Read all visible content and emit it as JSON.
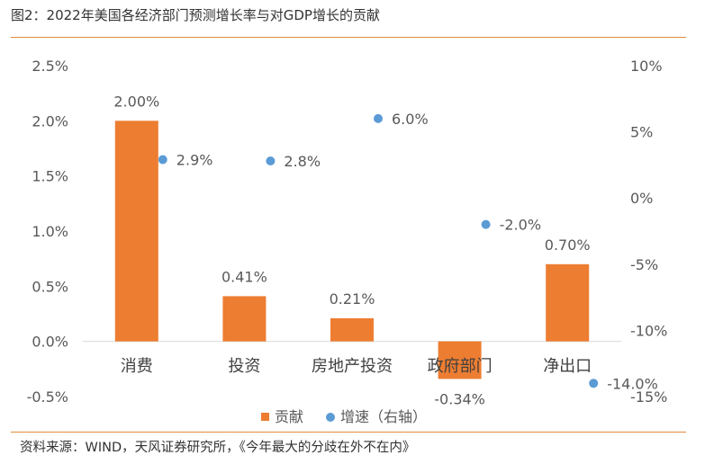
{
  "title": "图2：2022年美国各经济部门预测增长率与对GDP增长的贡献",
  "source": "资料来源：WIND，天风证券研究所，《今年最大的分歧在外不在内》",
  "colors": {
    "bar": "#ed7d31",
    "dot": "#5b9bd5",
    "rule": "#e48a3a",
    "axis": "#d9d9d9",
    "text": "#595959"
  },
  "chart_data": {
    "type": "bar",
    "categories": [
      "消费",
      "投资",
      "房地产投资",
      "政府部门",
      "净出口"
    ],
    "series": [
      {
        "name": "贡献",
        "type": "bar",
        "axis": "left",
        "values": [
          2.0,
          0.41,
          0.21,
          -0.34,
          0.7
        ],
        "labels": [
          "2.00%",
          "0.41%",
          "0.21%",
          "-0.34%",
          "0.70%"
        ]
      },
      {
        "name": "增速（右轴）",
        "type": "scatter",
        "axis": "right",
        "values": [
          2.9,
          2.8,
          6.0,
          -2.0,
          -14.0
        ],
        "labels": [
          "2.9%",
          "2.8%",
          "6.0%",
          "-2.0%",
          "-14.0%"
        ]
      }
    ],
    "y_left": {
      "ylim": [
        -0.5,
        2.5
      ],
      "ticks": [
        "2.5%",
        "2.0%",
        "1.5%",
        "1.0%",
        "0.5%",
        "0.0%",
        "-0.5%"
      ]
    },
    "y_right": {
      "ylim": [
        -15,
        10
      ],
      "ticks": [
        "10%",
        "5%",
        "0%",
        "-5%",
        "-10%",
        "-15%"
      ]
    },
    "legend": {
      "position": "bottom",
      "items": [
        "贡献",
        "增速（右轴）"
      ]
    },
    "grid": false
  }
}
